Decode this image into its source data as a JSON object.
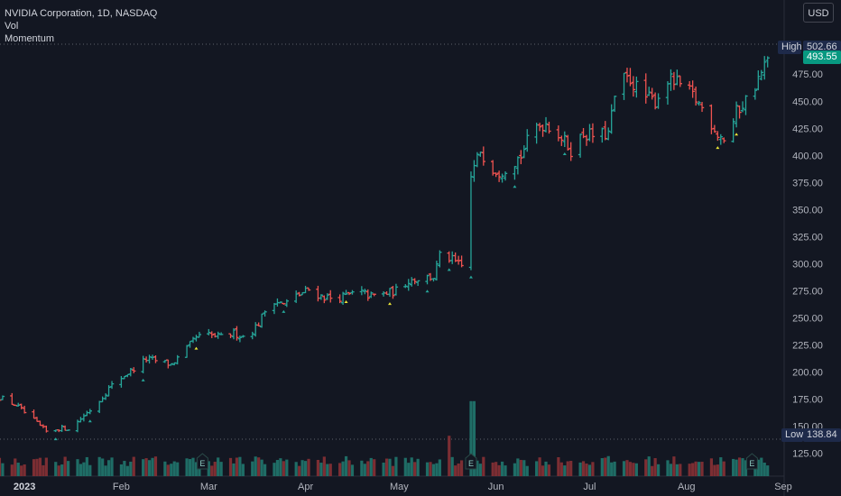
{
  "legend": {
    "symbol": "NVIDIA Corporation, 1D, NASDAQ",
    "vol": "Vol",
    "indicator": "Momentum"
  },
  "currency": "USD",
  "high": {
    "label": "High",
    "value": "502.66"
  },
  "low": {
    "label": "Low",
    "value": "138.84"
  },
  "last_price": "493.55",
  "earnings_marker": "E",
  "colors": {
    "up": "#26a69a",
    "down": "#ef5350",
    "bg": "#131722",
    "axis_text": "#b2b5be",
    "signal": "#e8e337"
  },
  "chart_data": {
    "type": "ohlc",
    "title": "NVIDIA Corporation, 1D, NASDAQ",
    "y_ticks": [
      125,
      150,
      175,
      200,
      225,
      250,
      275,
      300,
      325,
      350,
      375,
      400,
      425,
      450,
      475
    ],
    "ylim": [
      105,
      525
    ],
    "x_ticks": [
      {
        "label": "2023",
        "day": 3
      },
      {
        "label": "Feb",
        "day": 34
      },
      {
        "label": "Mar",
        "day": 62
      },
      {
        "label": "Apr",
        "day": 93
      },
      {
        "label": "May",
        "day": 123
      },
      {
        "label": "Jun",
        "day": 154
      },
      {
        "label": "Jul",
        "day": 184
      },
      {
        "label": "Aug",
        "day": 215
      },
      {
        "label": "Sep",
        "day": 246
      }
    ],
    "xlim": [
      -6,
      248
    ],
    "price_anchors": [
      [
        -6,
        178
      ],
      [
        0,
        170
      ],
      [
        6,
        155
      ],
      [
        10,
        145
      ],
      [
        14,
        148
      ],
      [
        18,
        148
      ],
      [
        22,
        160
      ],
      [
        26,
        170
      ],
      [
        30,
        185
      ],
      [
        34,
        195
      ],
      [
        38,
        203
      ],
      [
        42,
        212
      ],
      [
        46,
        210
      ],
      [
        50,
        207
      ],
      [
        54,
        218
      ],
      [
        58,
        232
      ],
      [
        62,
        234
      ],
      [
        66,
        232
      ],
      [
        70,
        236
      ],
      [
        74,
        232
      ],
      [
        78,
        245
      ],
      [
        82,
        268
      ],
      [
        86,
        262
      ],
      [
        90,
        270
      ],
      [
        94,
        276
      ],
      [
        98,
        270
      ],
      [
        102,
        268
      ],
      [
        106,
        270
      ],
      [
        110,
        274
      ],
      [
        114,
        270
      ],
      [
        118,
        272
      ],
      [
        122,
        275
      ],
      [
        126,
        285
      ],
      [
        130,
        287
      ],
      [
        134,
        288
      ],
      [
        137,
        316
      ],
      [
        139,
        305
      ],
      [
        143,
        297
      ],
      [
        146,
        380
      ],
      [
        149,
        405
      ],
      [
        152,
        390
      ],
      [
        155,
        385
      ],
      [
        158,
        390
      ],
      [
        162,
        400
      ],
      [
        166,
        425
      ],
      [
        170,
        430
      ],
      [
        174,
        420
      ],
      [
        178,
        405
      ],
      [
        182,
        420
      ],
      [
        186,
        418
      ],
      [
        190,
        420
      ],
      [
        193,
        470
      ],
      [
        197,
        470
      ],
      [
        201,
        455
      ],
      [
        205,
        450
      ],
      [
        209,
        470
      ],
      [
        213,
        465
      ],
      [
        217,
        455
      ],
      [
        221,
        440
      ],
      [
        225,
        420
      ],
      [
        228,
        413
      ],
      [
        231,
        440
      ],
      [
        235,
        455
      ],
      [
        238,
        470
      ],
      [
        242,
        493
      ]
    ],
    "volume_scale": "relative 0-1"
  }
}
